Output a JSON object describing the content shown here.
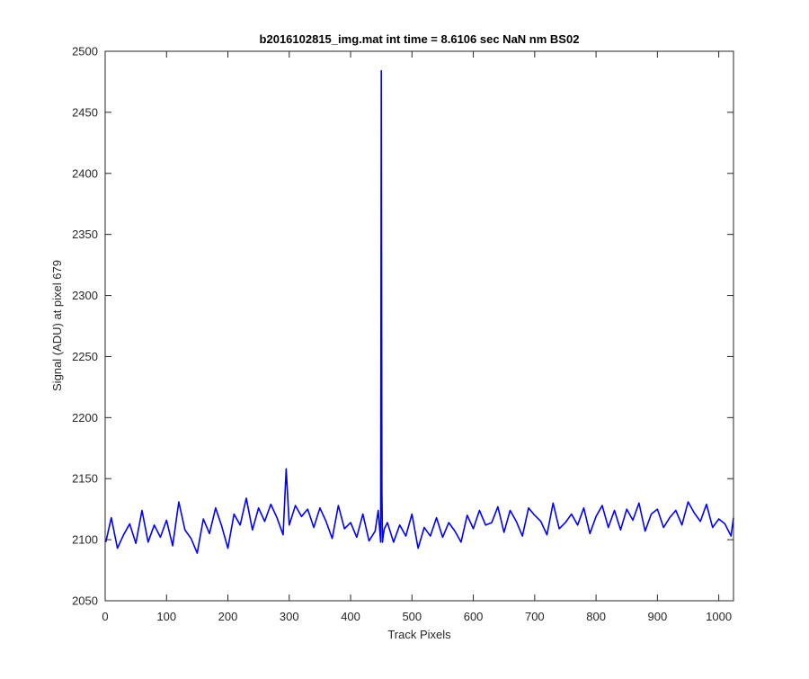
{
  "chart_data": {
    "type": "line",
    "title": "b2016102815_img.mat int time = 8.6106 sec  NaN nm BS02",
    "xlabel": "Track Pixels",
    "ylabel": "Signal (ADU) at pixel 679",
    "xlim": [
      0,
      1024
    ],
    "ylim": [
      2050,
      2500
    ],
    "xticks": [
      0,
      100,
      200,
      300,
      400,
      500,
      600,
      700,
      800,
      900,
      1000
    ],
    "yticks": [
      2050,
      2100,
      2150,
      2200,
      2250,
      2300,
      2350,
      2400,
      2450,
      2500
    ],
    "grid": false,
    "legend": "none",
    "series": [
      {
        "color": "#0000ff",
        "x": [
          1,
          10,
          20,
          30,
          40,
          50,
          60,
          70,
          80,
          90,
          100,
          110,
          120,
          130,
          140,
          150,
          160,
          170,
          180,
          190,
          200,
          210,
          220,
          230,
          240,
          250,
          260,
          270,
          280,
          290,
          295,
          300,
          310,
          320,
          330,
          340,
          350,
          360,
          370,
          380,
          390,
          400,
          410,
          420,
          430,
          440,
          445,
          449,
          450,
          451,
          452,
          453,
          455,
          460,
          470,
          480,
          490,
          500,
          510,
          520,
          530,
          540,
          550,
          560,
          570,
          580,
          590,
          600,
          610,
          620,
          630,
          640,
          650,
          660,
          670,
          680,
          690,
          700,
          710,
          720,
          730,
          740,
          750,
          760,
          770,
          780,
          790,
          800,
          810,
          820,
          830,
          840,
          850,
          860,
          870,
          880,
          890,
          900,
          910,
          920,
          930,
          940,
          950,
          960,
          970,
          980,
          990,
          1000,
          1010,
          1020,
          1024
        ],
        "y": [
          2098,
          2118,
          2093,
          2104,
          2113,
          2097,
          2124,
          2098,
          2112,
          2102,
          2116,
          2095,
          2131,
          2108,
          2101,
          2089,
          2117,
          2105,
          2126,
          2111,
          2093,
          2121,
          2112,
          2134,
          2108,
          2126,
          2115,
          2129,
          2118,
          2104,
          2158,
          2112,
          2128,
          2119,
          2125,
          2110,
          2126,
          2115,
          2101,
          2128,
          2109,
          2114,
          2102,
          2121,
          2099,
          2107,
          2124,
          2098,
          2484,
          2140,
          2098,
          2103,
          2109,
          2114,
          2098,
          2112,
          2103,
          2121,
          2093,
          2110,
          2103,
          2118,
          2102,
          2114,
          2107,
          2098,
          2120,
          2109,
          2124,
          2112,
          2114,
          2127,
          2106,
          2124,
          2115,
          2103,
          2126,
          2120,
          2115,
          2104,
          2130,
          2109,
          2114,
          2121,
          2112,
          2126,
          2105,
          2119,
          2128,
          2110,
          2124,
          2108,
          2125,
          2116,
          2130,
          2107,
          2121,
          2125,
          2110,
          2118,
          2124,
          2112,
          2131,
          2122,
          2115,
          2129,
          2110,
          2117,
          2113,
          2103,
          2118
        ]
      }
    ]
  }
}
